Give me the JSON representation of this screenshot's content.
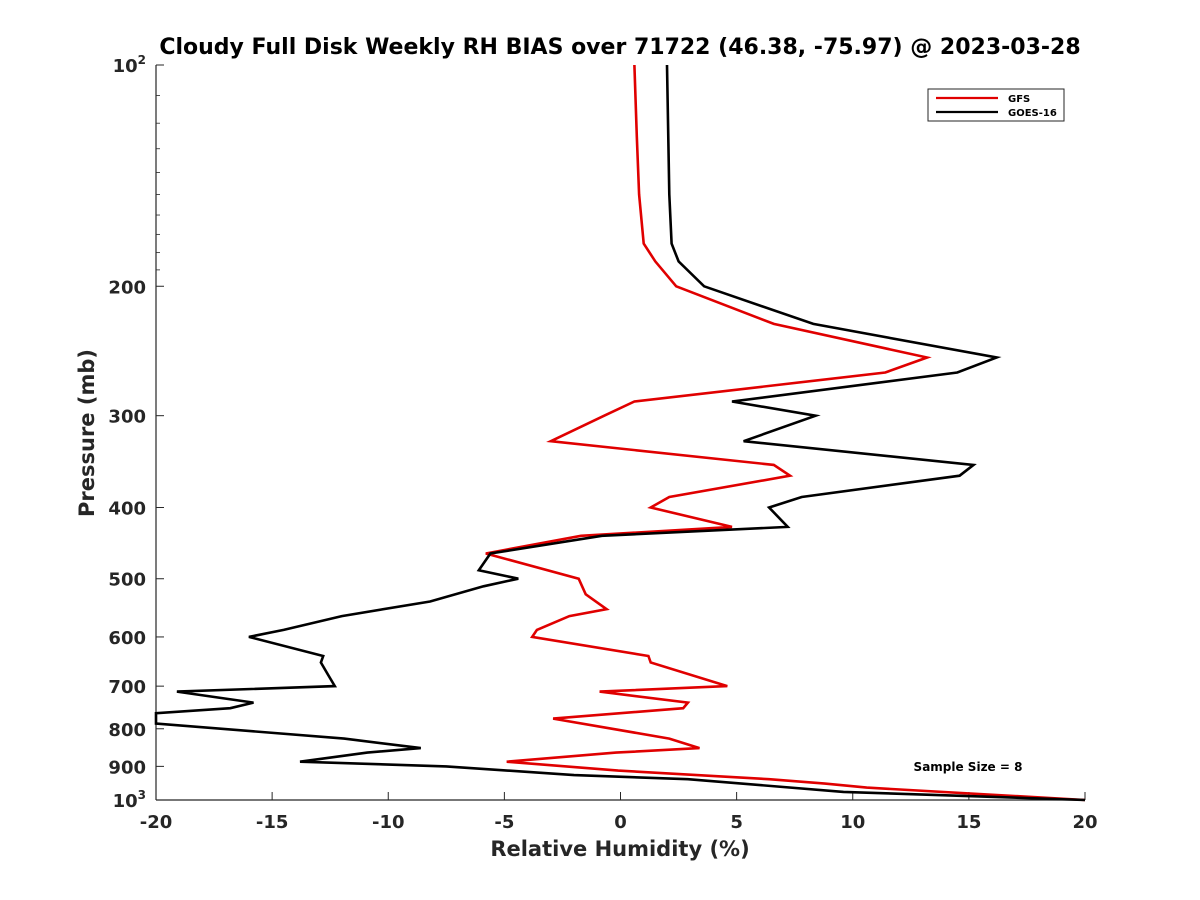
{
  "chart_data": {
    "type": "line",
    "title": "Cloudy Full Disk Weekly RH BIAS over 71722 (46.38, -75.97) @ 2023-03-28",
    "xlabel": "Relative Humidity (%)",
    "ylabel": "Pressure (mb)",
    "xlim": [
      -20,
      20
    ],
    "ylim": [
      100,
      1000
    ],
    "yscale": "log",
    "x_ticks": [
      -20,
      -15,
      -10,
      -5,
      0,
      5,
      10,
      15,
      20
    ],
    "x_tick_labels": [
      "-20",
      "-15",
      "-10",
      "-5",
      "0",
      "5",
      "10",
      "15",
      "20"
    ],
    "y_ticks": [
      {
        "value": 100,
        "base": "10",
        "exp": "2"
      },
      {
        "value": 200,
        "label": "200"
      },
      {
        "value": 300,
        "label": "300"
      },
      {
        "value": 400,
        "label": "400"
      },
      {
        "value": 500,
        "label": "500"
      },
      {
        "value": 600,
        "label": "600"
      },
      {
        "value": 700,
        "label": "700"
      },
      {
        "value": 800,
        "label": "800"
      },
      {
        "value": 900,
        "label": "900"
      },
      {
        "value": 1000,
        "base": "10",
        "exp": "3"
      }
    ],
    "legend_position": "top-right",
    "annotation": "Sample Size = 8",
    "series": [
      {
        "name": "GFS",
        "color": "#e00000",
        "points": [
          [
            0.6,
            100
          ],
          [
            0.7,
            125
          ],
          [
            0.8,
            150
          ],
          [
            1.0,
            175
          ],
          [
            1.5,
            185
          ],
          [
            2.4,
            200
          ],
          [
            6.6,
            225
          ],
          [
            13.2,
            250
          ],
          [
            11.4,
            262
          ],
          [
            0.6,
            287
          ],
          [
            -0.7,
            300
          ],
          [
            -3.0,
            325
          ],
          [
            6.6,
            350
          ],
          [
            7.3,
            362
          ],
          [
            2.1,
            387
          ],
          [
            1.3,
            400
          ],
          [
            4.8,
            425
          ],
          [
            -1.7,
            437
          ],
          [
            -5.8,
            462
          ],
          [
            -1.8,
            500
          ],
          [
            -1.5,
            525
          ],
          [
            -0.6,
            550
          ],
          [
            -2.2,
            562
          ],
          [
            -3.6,
            587
          ],
          [
            -3.8,
            600
          ],
          [
            1.2,
            637
          ],
          [
            1.3,
            650
          ],
          [
            4.6,
            700
          ],
          [
            -0.9,
            712
          ],
          [
            2.9,
            737
          ],
          [
            2.7,
            750
          ],
          [
            -2.9,
            775
          ],
          [
            2.1,
            825
          ],
          [
            3.4,
            850
          ],
          [
            -0.2,
            862
          ],
          [
            -4.9,
            887
          ],
          [
            -0.1,
            912
          ],
          [
            6.4,
            937
          ],
          [
            8.8,
            950
          ],
          [
            10.6,
            962
          ],
          [
            20.0,
            1000
          ]
        ]
      },
      {
        "name": "GOES-16",
        "color": "#000000",
        "points": [
          [
            2.0,
            100
          ],
          [
            2.1,
            150
          ],
          [
            2.2,
            175
          ],
          [
            2.5,
            185
          ],
          [
            3.6,
            200
          ],
          [
            8.3,
            225
          ],
          [
            16.2,
            250
          ],
          [
            14.5,
            262
          ],
          [
            4.8,
            287
          ],
          [
            8.4,
            300
          ],
          [
            5.3,
            325
          ],
          [
            15.2,
            350
          ],
          [
            14.6,
            362
          ],
          [
            7.8,
            387
          ],
          [
            6.4,
            400
          ],
          [
            7.2,
            425
          ],
          [
            -0.8,
            437
          ],
          [
            -5.6,
            462
          ],
          [
            -6.1,
            487
          ],
          [
            -4.4,
            500
          ],
          [
            -5.9,
            512
          ],
          [
            -8.2,
            537
          ],
          [
            -12.0,
            562
          ],
          [
            -14.5,
            587
          ],
          [
            -16.0,
            600
          ],
          [
            -12.8,
            637
          ],
          [
            -12.9,
            650
          ],
          [
            -12.6,
            675
          ],
          [
            -12.3,
            700
          ],
          [
            -19.1,
            712
          ],
          [
            -15.8,
            737
          ],
          [
            -16.8,
            750
          ],
          [
            -20.0,
            762
          ],
          [
            -20.0,
            787
          ],
          [
            -11.9,
            825
          ],
          [
            -8.6,
            850
          ],
          [
            -10.9,
            862
          ],
          [
            -13.8,
            887
          ],
          [
            -7.5,
            900
          ],
          [
            -2.0,
            925
          ],
          [
            2.9,
            937
          ],
          [
            9.6,
            975
          ],
          [
            20.0,
            1000
          ]
        ]
      }
    ]
  }
}
